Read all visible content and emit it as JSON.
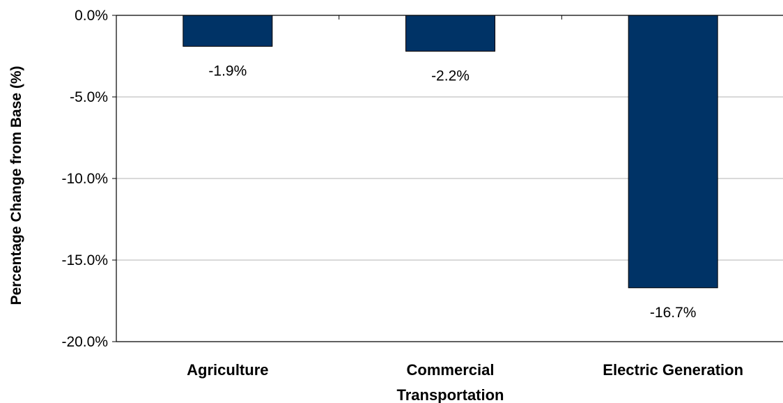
{
  "chart_data": {
    "type": "bar",
    "categories": [
      [
        "Agriculture"
      ],
      [
        "Commercial",
        "Transportation"
      ],
      [
        "Electric Generation"
      ]
    ],
    "values": [
      -1.9,
      -2.2,
      -16.7
    ],
    "data_labels": [
      "-1.9%",
      "-2.2%",
      "-16.7%"
    ],
    "ylabel": "Percentage Change from Base (%)",
    "ylim": [
      -20,
      0
    ],
    "yticks": [
      0,
      -5,
      -10,
      -15,
      -20
    ],
    "ytick_labels": [
      "0.0%",
      "-5.0%",
      "-10.0%",
      "-15.0%",
      "-20.0%"
    ],
    "grid": true,
    "legend": "none",
    "colors": {
      "bar": "#003366",
      "bar_edge": "#000000",
      "grid": "#b3b3b3",
      "axis": "#000000"
    }
  }
}
